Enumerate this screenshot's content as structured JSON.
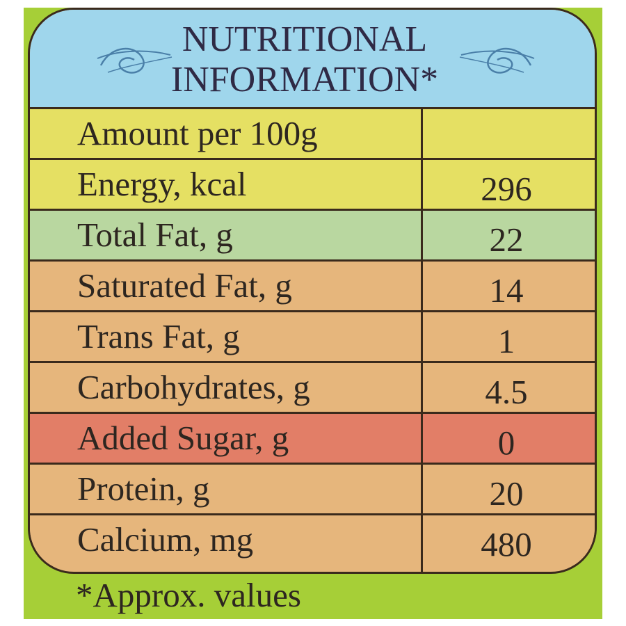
{
  "header": {
    "title_line1": "NUTRITIONAL",
    "title_line2": "INFORMATION*"
  },
  "colors": {
    "background": "#a6cf37",
    "header": "#9fd6ec",
    "yellow_row": "#e5e063",
    "green_row": "#b9d7a0",
    "orange_row": "#e6b67c",
    "red_row": "#e27e67",
    "border": "#3a2a1c"
  },
  "table": {
    "rows": [
      {
        "label": "Amount per 100g",
        "value": "",
        "color": "#e5e063"
      },
      {
        "label": "Energy, kcal",
        "value": "296",
        "color": "#e5e063"
      },
      {
        "label": "Total Fat, g",
        "value": "22",
        "color": "#b9d7a0"
      },
      {
        "label": "Saturated Fat, g",
        "value": "14",
        "color": "#e6b67c"
      },
      {
        "label": "Trans Fat, g",
        "value": "1",
        "color": "#e6b67c"
      },
      {
        "label": "Carbohydrates, g",
        "value": "4.5",
        "color": "#e6b67c"
      },
      {
        "label": "Added Sugar, g",
        "value": "0",
        "color": "#e27e67"
      },
      {
        "label": "Protein, g",
        "value": "20",
        "color": "#e6b67c"
      },
      {
        "label": "Calcium, mg",
        "value": "480",
        "color": "#e6b67c"
      }
    ]
  },
  "footnote": "*Approx. values"
}
